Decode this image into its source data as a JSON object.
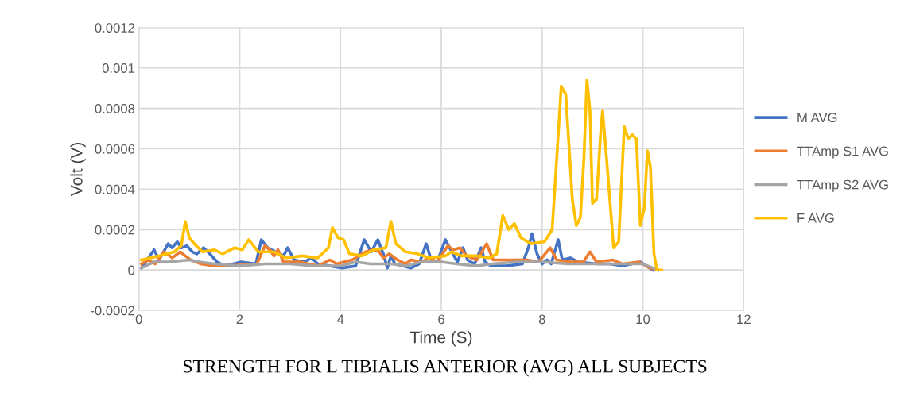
{
  "chart_data": {
    "type": "line",
    "title": "STRENGTH FOR L TIBIALIS ANTERIOR (AVG) ALL SUBJECTS",
    "xlabel": "Time (S)",
    "ylabel": "Volt (V)",
    "xlim": [
      0,
      12
    ],
    "xticks": [
      0,
      2,
      4,
      6,
      8,
      10,
      12
    ],
    "ylim": [
      -0.0002,
      0.0012
    ],
    "yticks": [
      -0.0002,
      0,
      0.0002,
      0.0004,
      0.0006,
      0.0008,
      0.001,
      0.0012
    ],
    "grid": true,
    "legend": "right",
    "marker": "none",
    "line_style": "solid",
    "series": [
      {
        "name": "M AVG",
        "color": "#4472c4",
        "x": [
          0.05,
          0.3,
          0.4,
          0.58,
          0.66,
          0.76,
          0.84,
          0.95,
          1.06,
          1.15,
          1.28,
          1.37,
          1.55,
          1.71,
          2.03,
          2.32,
          2.43,
          2.55,
          2.71,
          2.87,
          2.95,
          3.08,
          3.28,
          3.43,
          3.55,
          4.03,
          4.3,
          4.47,
          4.61,
          4.74,
          4.85,
          4.93,
          5.0,
          5.08,
          5.4,
          5.56,
          5.7,
          5.8,
          5.92,
          6.08,
          6.21,
          6.32,
          6.43,
          6.52,
          6.66,
          6.79,
          6.87,
          6.98,
          7.29,
          7.61,
          7.74,
          7.8,
          7.9,
          8.0,
          8.1,
          8.18,
          8.32,
          8.4,
          8.56,
          8.72,
          9.08,
          9.35,
          9.6,
          9.95,
          10.07,
          10.2
        ],
        "values": [
          1e-05,
          0.0001,
          5e-05,
          0.00013,
          0.00011,
          0.00014,
          0.00011,
          0.00012,
          9e-05,
          8e-05,
          0.00011,
          9e-05,
          4e-05,
          2e-05,
          4e-05,
          3e-05,
          0.00015,
          0.00011,
          9e-05,
          7e-05,
          0.00011,
          5e-05,
          4e-05,
          6e-05,
          3e-05,
          1e-05,
          2e-05,
          0.00015,
          9e-05,
          0.00015,
          8e-05,
          1e-05,
          7e-05,
          3e-05,
          1e-05,
          3e-05,
          0.00013,
          5e-05,
          4e-05,
          0.00015,
          9e-05,
          4e-05,
          0.00011,
          5e-05,
          3e-05,
          0.00011,
          4e-05,
          2e-05,
          2e-05,
          3e-05,
          0.00012,
          0.00018,
          8e-05,
          3e-05,
          5e-05,
          3e-05,
          0.00015,
          5e-05,
          6e-05,
          4e-05,
          3e-05,
          3e-05,
          2e-05,
          4e-05,
          2e-05,
          0
        ]
      },
      {
        "name": "TTAmp S1 AVG",
        "color": "#ed7d31",
        "x": [
          0.05,
          0.19,
          0.32,
          0.5,
          0.66,
          0.82,
          0.92,
          1.03,
          1.23,
          1.5,
          1.77,
          2.34,
          2.5,
          2.6,
          2.68,
          2.76,
          2.87,
          3.19,
          3.55,
          3.79,
          3.92,
          4.23,
          4.5,
          4.66,
          4.77,
          4.85,
          4.97,
          5.13,
          5.29,
          5.4,
          5.61,
          5.76,
          5.92,
          6.13,
          6.24,
          6.37,
          6.5,
          6.71,
          6.9,
          7.03,
          7.39,
          7.71,
          7.93,
          8.16,
          8.29,
          8.56,
          8.82,
          8.95,
          9.08,
          9.4,
          9.6,
          9.92,
          10.14,
          10.3
        ],
        "values": [
          3e-05,
          5e-05,
          3e-05,
          9e-05,
          6e-05,
          9e-05,
          7e-05,
          5e-05,
          3e-05,
          2e-05,
          2e-05,
          3e-05,
          0.00012,
          0.0001,
          7e-05,
          0.0001,
          4e-05,
          4e-05,
          2e-05,
          5e-05,
          3e-05,
          5e-05,
          9e-05,
          0.0001,
          9e-05,
          6e-05,
          8e-05,
          5e-05,
          3e-05,
          5e-05,
          4e-05,
          6e-05,
          4e-05,
          0.00012,
          0.0001,
          0.00011,
          7e-05,
          5e-05,
          0.00013,
          5e-05,
          5e-05,
          5e-05,
          4e-05,
          0.00011,
          5e-05,
          4e-05,
          4e-05,
          9e-05,
          4e-05,
          5e-05,
          3e-05,
          4e-05,
          1e-05,
          0
        ]
      },
      {
        "name": "TTAmp S2 AVG",
        "color": "#a5a5a5",
        "x": [
          0.05,
          0.3,
          0.6,
          1.0,
          1.2,
          1.5,
          2.0,
          2.5,
          3.0,
          3.5,
          4.0,
          4.3,
          4.6,
          5.0,
          5.3,
          5.6,
          6.0,
          6.3,
          6.7,
          7.0,
          7.5,
          8.0,
          8.5,
          9.0,
          9.5,
          10.0,
          10.2,
          10.3
        ],
        "values": [
          1e-05,
          4e-05,
          4e-05,
          5e-05,
          4e-05,
          3e-05,
          2e-05,
          3e-05,
          3e-05,
          2e-05,
          2e-05,
          4e-05,
          3e-05,
          3e-05,
          2e-05,
          4e-05,
          4e-05,
          3e-05,
          2e-05,
          3e-05,
          4e-05,
          4e-05,
          3e-05,
          3e-05,
          3e-05,
          3e-05,
          1e-05,
          0
        ]
      },
      {
        "name": "F AVG",
        "color": "#ffc000",
        "x": [
          0.05,
          0.4,
          0.7,
          0.84,
          0.92,
          1.0,
          1.1,
          1.26,
          1.5,
          1.66,
          1.9,
          2.05,
          2.18,
          2.37,
          2.68,
          2.92,
          3.24,
          3.55,
          3.76,
          3.84,
          3.95,
          4.06,
          4.18,
          4.42,
          4.66,
          4.9,
          5.0,
          5.1,
          5.29,
          5.53,
          5.76,
          6.08,
          6.2,
          6.4,
          6.71,
          6.95,
          7.1,
          7.22,
          7.34,
          7.45,
          7.58,
          7.78,
          8.05,
          8.2,
          8.29,
          8.38,
          8.47,
          8.6,
          8.68,
          8.76,
          8.83,
          8.89,
          8.95,
          9.0,
          9.08,
          9.16,
          9.2,
          9.28,
          9.42,
          9.52,
          9.63,
          9.71,
          9.79,
          9.87,
          9.95,
          10.03,
          10.09,
          10.15,
          10.22,
          10.28,
          10.37
        ],
        "values": [
          5e-05,
          7e-05,
          9e-05,
          0.00012,
          0.00024,
          0.00016,
          0.00013,
          9e-05,
          0.0001,
          8e-05,
          0.00011,
          0.0001,
          0.00015,
          9e-05,
          9e-05,
          6e-05,
          7e-05,
          6e-05,
          0.00011,
          0.00021,
          0.00016,
          0.00015,
          8e-05,
          7e-05,
          0.0001,
          0.00011,
          0.00024,
          0.00013,
          9e-05,
          8e-05,
          6e-05,
          7e-05,
          9e-05,
          7e-05,
          7e-05,
          6e-05,
          8e-05,
          0.00027,
          0.0002,
          0.00023,
          0.00016,
          0.00013,
          0.00014,
          0.0002,
          0.00055,
          0.00091,
          0.00087,
          0.00035,
          0.00022,
          0.00026,
          0.00055,
          0.00094,
          0.00079,
          0.00033,
          0.00035,
          0.00067,
          0.00079,
          0.00055,
          0.00011,
          0.00014,
          0.00071,
          0.00065,
          0.00067,
          0.00065,
          0.00022,
          0.00031,
          0.00059,
          0.00051,
          8e-05,
          0,
          0
        ]
      }
    ]
  }
}
